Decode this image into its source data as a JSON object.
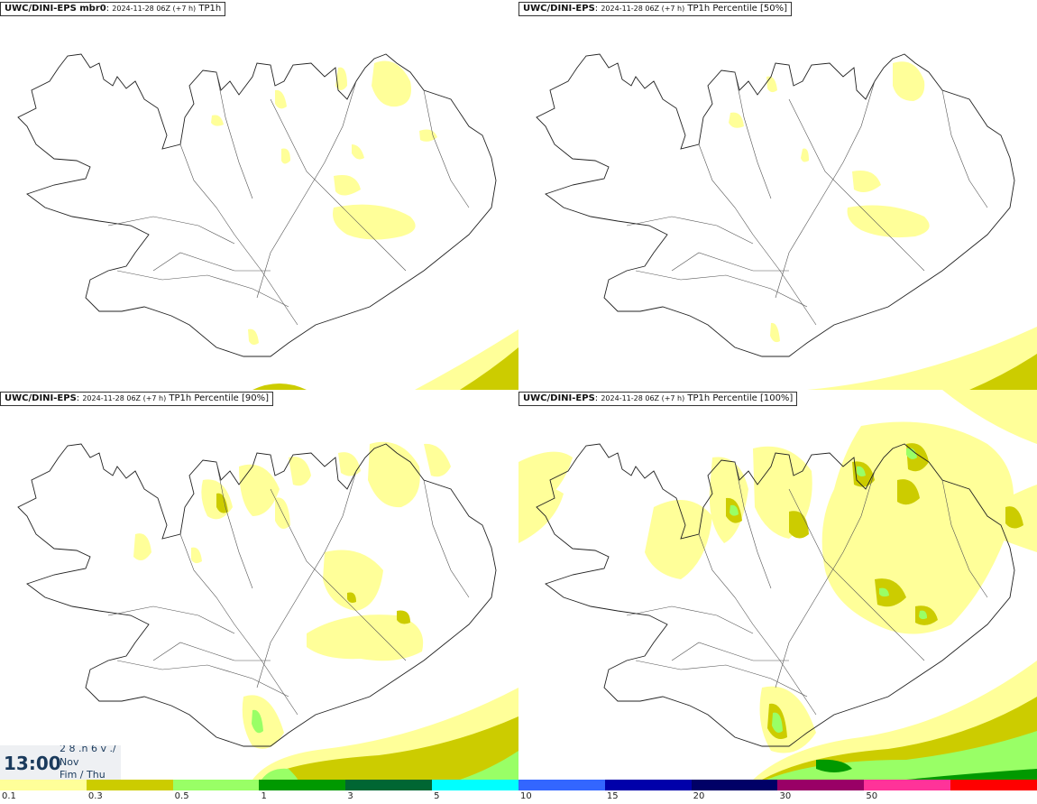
{
  "panels": [
    {
      "model": "UWC/DINI-EPS mbr0",
      "run": "2024-11-28 06Z (+7 h)",
      "field": "TP1h"
    },
    {
      "model": "UWC/DINI-EPS",
      "run": "2024-11-28 06Z (+7 h)",
      "field": "TP1h Percentile [50%]"
    },
    {
      "model": "UWC/DINI-EPS",
      "run": "2024-11-28 06Z (+7 h)",
      "field": "TP1h Percentile [90%]"
    },
    {
      "model": "UWC/DINI-EPS",
      "run": "2024-11-28 06Z (+7 h)",
      "field": "TP1h Percentile [100%]"
    }
  ],
  "timebox": {
    "time": "13:00",
    "date_top": "2 8 .n 6 v ./",
    "month": "Nov",
    "day": "Fim / Thu"
  },
  "colorbar": {
    "colors": [
      "#ffff99",
      "#cccc00",
      "#99ff66",
      "#009900",
      "#006633",
      "#00ffff",
      "#3366ff",
      "#0000aa",
      "#000066",
      "#990066",
      "#ff3399",
      "#ff0000"
    ],
    "ticks": [
      "0.1",
      "0.3",
      "0.5",
      "1",
      "3",
      "5",
      "10",
      "15",
      "20",
      "30",
      "50"
    ]
  }
}
